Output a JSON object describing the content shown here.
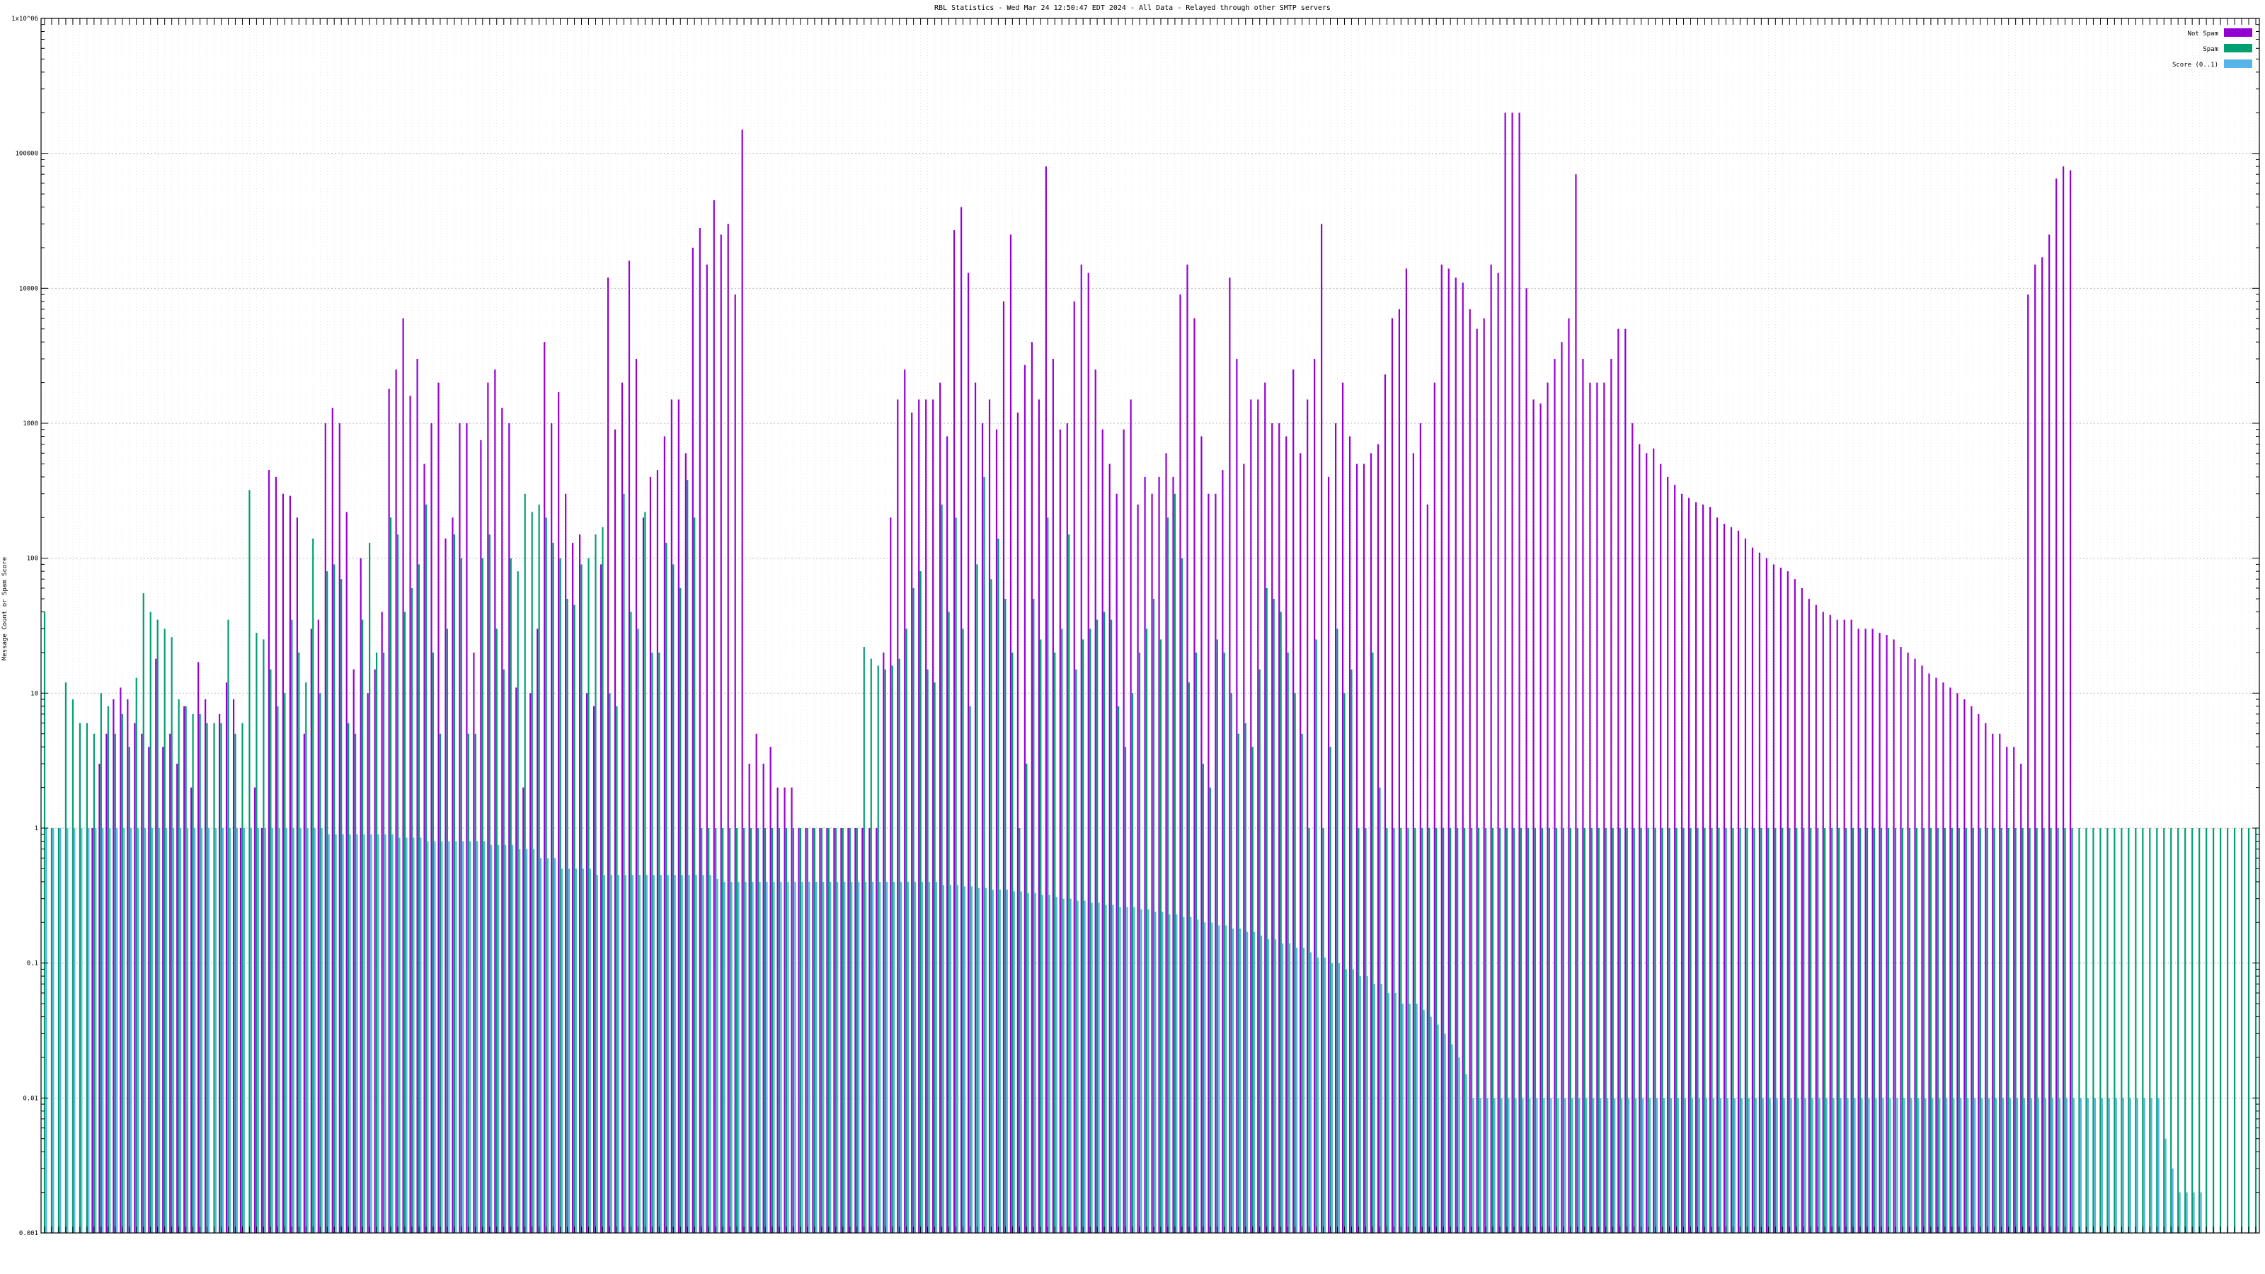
{
  "chart_data": {
    "type": "bar",
    "title": "RBL Statistics - Wed Mar 24 12:50:47 EDT 2024 - All Data - Relayed through other SMTP servers",
    "ylabel": "Message Count or Spam Score",
    "y_scale": "log",
    "ylim": [
      0.001,
      1000000
    ],
    "y_tick_labels": [
      "0.001",
      "0.01",
      "0.1",
      "1",
      "10",
      "100",
      "1000",
      "10000",
      "100000",
      "1x10^06"
    ],
    "grid": true,
    "legend_position": "top-right",
    "series": [
      {
        "name": "Not Spam",
        "color": "#9400D3",
        "values": [
          0.001,
          0.001,
          0.001,
          0.001,
          0.001,
          0.001,
          0.001,
          1,
          3,
          5,
          9,
          11,
          9,
          6,
          5,
          4,
          18,
          4,
          5,
          3,
          8,
          2,
          17,
          9,
          0.001,
          7,
          12,
          9,
          1,
          0.001,
          2,
          1,
          450,
          400,
          300,
          290,
          200,
          5,
          30,
          35,
          1000,
          1300,
          1000,
          220,
          15,
          100,
          10,
          15,
          40,
          1800,
          2500,
          6000,
          1600,
          3000,
          500,
          1000,
          2000,
          140,
          200,
          1000,
          1000,
          20,
          750,
          2000,
          2500,
          1300,
          1000,
          11,
          2,
          10,
          30,
          4000,
          1000,
          1700,
          300,
          130,
          150,
          10,
          8,
          90,
          12000,
          900,
          2000,
          16000,
          3000,
          200,
          400,
          450,
          800,
          1500,
          1500,
          600,
          20000,
          28000,
          15000,
          45000,
          25000,
          30000,
          9000,
          150000,
          3,
          5,
          3,
          4,
          2,
          2,
          2,
          1,
          1,
          1,
          1,
          1,
          1,
          1,
          1,
          1,
          1,
          1,
          1,
          20,
          200,
          1500,
          2500,
          1200,
          1500,
          1500,
          1500,
          2000,
          800,
          27000,
          40000,
          13000,
          2000,
          1000,
          1500,
          900,
          8000,
          25000,
          1200,
          2700,
          4000,
          1500,
          80000,
          3000,
          900,
          1000,
          8000,
          15000,
          13000,
          2500,
          900,
          500,
          300,
          900,
          1500,
          250,
          400,
          300,
          400,
          600,
          400,
          9000,
          15000,
          6000,
          800,
          300,
          300,
          450,
          12000,
          3000,
          500,
          1500,
          1500,
          2000,
          1000,
          1000,
          800,
          2500,
          600,
          1500,
          3000,
          30000,
          400,
          1000,
          2000,
          800,
          500,
          500,
          600,
          700,
          2300,
          6000,
          7000,
          14000,
          600,
          1000,
          250,
          2000,
          15000,
          14000,
          12000,
          11000,
          7000,
          5000,
          6000,
          15000,
          13000,
          200000,
          200000,
          200000,
          10000,
          1500,
          1400,
          2000,
          3000,
          4000,
          6000,
          70000,
          3000,
          2000,
          2000,
          2000,
          3000,
          5000,
          5000,
          1000,
          700,
          600,
          650,
          500,
          400,
          350,
          300,
          280,
          260,
          250,
          240,
          200,
          180,
          170,
          160,
          140,
          120,
          110,
          100,
          90,
          85,
          80,
          70,
          60,
          50,
          45,
          40,
          38,
          35,
          35,
          35,
          30,
          30,
          30,
          28,
          27,
          25,
          22,
          20,
          18,
          16,
          14,
          13,
          12,
          11,
          10,
          9,
          8,
          7,
          6,
          5,
          5,
          4,
          4,
          3,
          9000,
          15000,
          17000,
          25000,
          65000,
          80000,
          75000
        ]
      },
      {
        "name": "Spam",
        "color": "#009E73",
        "values": [
          40,
          1,
          1,
          12,
          9,
          6,
          6,
          5,
          10,
          8,
          5,
          7,
          4,
          13,
          55,
          40,
          35,
          30,
          26,
          9,
          8,
          7,
          7,
          6,
          6,
          6,
          35,
          5,
          6,
          320,
          28,
          25,
          15,
          8,
          10,
          35,
          20,
          12,
          140,
          10,
          80,
          90,
          70,
          6,
          5,
          35,
          130,
          20,
          20,
          200,
          150,
          40,
          60,
          90,
          250,
          20,
          5,
          30,
          150,
          100,
          5,
          5,
          100,
          150,
          30,
          15,
          100,
          80,
          300,
          220,
          250,
          200,
          130,
          100,
          50,
          45,
          90,
          100,
          150,
          170,
          10,
          8,
          300,
          40,
          30,
          220,
          20,
          20,
          130,
          90,
          60,
          380,
          200,
          1,
          1,
          1,
          1,
          1,
          1,
          1,
          1,
          1,
          1,
          1,
          1,
          1,
          1,
          1,
          1,
          1,
          1,
          1,
          1,
          1,
          1,
          1,
          22,
          18,
          16,
          15,
          16,
          18,
          30,
          60,
          80,
          15,
          12,
          250,
          40,
          200,
          30,
          8,
          90,
          400,
          70,
          140,
          50,
          20,
          1,
          3,
          50,
          25,
          200,
          20,
          30,
          150,
          15,
          25,
          30,
          35,
          40,
          35,
          8,
          4,
          10,
          20,
          30,
          50,
          25,
          200,
          300,
          100,
          12,
          20,
          3,
          2,
          25,
          20,
          10,
          5,
          6,
          4,
          15,
          60,
          50,
          40,
          20,
          10,
          5,
          1,
          25,
          1,
          4,
          30,
          10,
          15,
          1,
          1,
          20,
          2,
          1,
          1,
          1,
          1,
          1,
          1,
          1,
          1,
          1,
          1,
          1,
          1,
          1,
          1,
          1,
          1,
          1,
          1,
          1,
          1,
          1,
          1,
          1,
          1,
          1,
          1,
          1,
          1,
          1,
          1,
          1,
          1,
          1,
          1,
          1,
          1,
          1,
          1,
          1,
          1,
          1,
          1,
          1,
          1,
          1,
          1,
          1,
          1,
          1,
          1,
          1,
          1,
          1,
          1,
          1,
          1,
          1,
          1,
          1,
          1,
          1,
          1,
          1,
          1,
          1,
          1,
          1,
          1,
          1,
          1,
          1,
          1,
          1,
          1,
          1,
          1,
          1,
          1,
          1,
          1,
          1,
          1,
          1,
          1,
          1,
          1,
          1,
          1,
          1,
          1,
          1,
          1,
          1,
          1,
          1,
          1,
          1,
          1,
          1,
          1,
          1,
          1,
          1,
          1,
          1,
          1,
          1,
          1,
          1,
          1,
          1,
          1,
          1,
          1,
          1,
          1,
          1,
          1,
          1,
          1,
          1,
          1,
          1,
          1
        ]
      },
      {
        "name": "Score (0..1)",
        "color": "#56B4E9",
        "values": [
          1,
          1,
          1,
          1,
          1,
          1,
          1,
          1,
          1,
          1,
          1,
          1,
          1,
          1,
          1,
          1,
          1,
          1,
          1,
          1,
          1,
          1,
          1,
          1,
          1,
          1,
          1,
          1,
          1,
          1,
          1,
          1,
          1,
          1,
          1,
          1,
          1,
          1,
          1,
          1,
          0.9,
          0.9,
          0.9,
          0.9,
          0.9,
          0.9,
          0.9,
          0.9,
          0.9,
          0.9,
          0.85,
          0.85,
          0.85,
          0.85,
          0.8,
          0.8,
          0.8,
          0.8,
          0.8,
          0.8,
          0.8,
          0.8,
          0.8,
          0.75,
          0.75,
          0.75,
          0.75,
          0.7,
          0.7,
          0.7,
          0.6,
          0.6,
          0.6,
          0.5,
          0.5,
          0.5,
          0.5,
          0.5,
          0.45,
          0.45,
          0.45,
          0.45,
          0.45,
          0.45,
          0.45,
          0.45,
          0.45,
          0.45,
          0.45,
          0.45,
          0.45,
          0.45,
          0.45,
          0.45,
          0.45,
          0.42,
          0.4,
          0.4,
          0.4,
          0.4,
          0.4,
          0.4,
          0.4,
          0.4,
          0.4,
          0.4,
          0.4,
          0.4,
          0.4,
          0.4,
          0.4,
          0.4,
          0.4,
          0.4,
          0.4,
          0.4,
          0.4,
          0.4,
          0.4,
          0.4,
          0.4,
          0.4,
          0.4,
          0.4,
          0.4,
          0.4,
          0.4,
          0.38,
          0.38,
          0.38,
          0.37,
          0.37,
          0.36,
          0.36,
          0.35,
          0.35,
          0.35,
          0.34,
          0.34,
          0.33,
          0.33,
          0.32,
          0.32,
          0.31,
          0.3,
          0.3,
          0.29,
          0.29,
          0.28,
          0.28,
          0.27,
          0.27,
          0.26,
          0.26,
          0.26,
          0.25,
          0.25,
          0.24,
          0.24,
          0.23,
          0.23,
          0.22,
          0.22,
          0.21,
          0.2,
          0.2,
          0.19,
          0.19,
          0.18,
          0.18,
          0.17,
          0.17,
          0.16,
          0.15,
          0.15,
          0.14,
          0.14,
          0.13,
          0.13,
          0.12,
          0.11,
          0.11,
          0.1,
          0.1,
          0.09,
          0.09,
          0.08,
          0.08,
          0.07,
          0.07,
          0.06,
          0.06,
          0.05,
          0.05,
          0.05,
          0.045,
          0.04,
          0.035,
          0.03,
          0.025,
          0.02,
          0.015,
          0.01,
          0.01,
          0.01,
          0.01,
          0.01,
          0.01,
          0.01,
          0.01,
          0.01,
          0.01,
          0.01,
          0.01,
          0.01,
          0.01,
          0.01,
          0.01,
          0.01,
          0.01,
          0.01,
          0.01,
          0.01,
          0.01,
          0.01,
          0.01,
          0.01,
          0.01,
          0.01,
          0.01,
          0.01,
          0.01,
          0.01,
          0.01,
          0.01,
          0.01,
          0.01,
          0.01,
          0.01,
          0.01,
          0.01,
          0.01,
          0.01,
          0.01,
          0.01,
          0.01,
          0.01,
          0.01,
          0.01,
          0.01,
          0.01,
          0.01,
          0.01,
          0.01,
          0.01,
          0.01,
          0.01,
          0.01,
          0.01,
          0.01,
          0.01,
          0.01,
          0.01,
          0.01,
          0.01,
          0.01,
          0.01,
          0.01,
          0.01,
          0.01,
          0.01,
          0.01,
          0.01,
          0.01,
          0.01,
          0.01,
          0.01,
          0.01,
          0.01,
          0.01,
          0.01,
          0.01,
          0.01,
          0.01,
          0.01,
          0.01,
          0.01,
          0.01,
          0.01,
          0.01,
          0.01,
          0.01,
          0.01,
          0.01,
          0.01,
          0.01,
          0.01,
          0.01,
          0.01,
          0.01,
          0.005,
          0.003,
          0.002,
          0.002,
          0.002,
          0.002
        ]
      }
    ]
  }
}
